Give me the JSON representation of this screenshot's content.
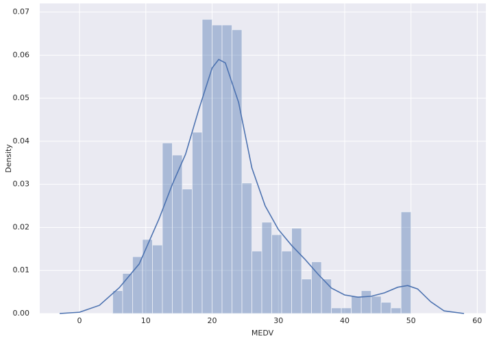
{
  "chart_data": {
    "type": "histogram",
    "xlabel": "MEDV",
    "ylabel": "Density",
    "bins": [
      5,
      6.5,
      8,
      9.5,
      11,
      12.5,
      14,
      15.5,
      17,
      18.5,
      20,
      21.5,
      23,
      24.5,
      26,
      27.5,
      29,
      30.5,
      32,
      33.5,
      35,
      36.5,
      38,
      39.5,
      41,
      42.5,
      44,
      45.5,
      47,
      48.5,
      50
    ],
    "values": [
      0.0053,
      0.0093,
      0.0132,
      0.0172,
      0.0159,
      0.0396,
      0.0368,
      0.0289,
      0.0421,
      0.0683,
      0.067,
      0.067,
      0.0659,
      0.0303,
      0.0145,
      0.0212,
      0.0183,
      0.0145,
      0.0198,
      0.008,
      0.012,
      0.008,
      0.0013,
      0.0013,
      0.004,
      0.0053,
      0.004,
      0.0026,
      0.0013,
      0.0236
    ],
    "color": "#4c72b0",
    "kde": {
      "color": "#4c72b0",
      "x": [
        -3,
        0,
        3,
        6,
        9,
        12,
        14,
        16,
        18,
        20,
        21,
        22,
        24,
        26,
        28,
        30,
        32,
        34,
        36,
        38,
        40,
        42,
        44,
        46,
        48,
        49.5,
        51,
        53,
        55,
        58
      ],
      "y": [
        0.0,
        0.0003,
        0.0019,
        0.006,
        0.0115,
        0.022,
        0.03,
        0.037,
        0.0474,
        0.057,
        0.059,
        0.0582,
        0.049,
        0.0338,
        0.025,
        0.0195,
        0.0158,
        0.0126,
        0.0091,
        0.0059,
        0.0043,
        0.0038,
        0.004,
        0.0048,
        0.0061,
        0.0065,
        0.0057,
        0.0027,
        0.0006,
        0.0
      ]
    },
    "xlim": [
      -6,
      61.3
    ],
    "ylim": [
      0,
      0.072
    ],
    "xticks": [
      0,
      10,
      20,
      30,
      40,
      50,
      60
    ],
    "yticks": [
      {
        "value": 0,
        "label": "0.00"
      },
      {
        "value": 0.01,
        "label": "0.01"
      },
      {
        "value": 0.02,
        "label": "0.02"
      },
      {
        "value": 0.03,
        "label": "0.03"
      },
      {
        "value": 0.04,
        "label": "0.04"
      },
      {
        "value": 0.05,
        "label": "0.05"
      },
      {
        "value": 0.06,
        "label": "0.06"
      },
      {
        "value": 0.07,
        "label": "0.07"
      }
    ],
    "grid": true
  }
}
